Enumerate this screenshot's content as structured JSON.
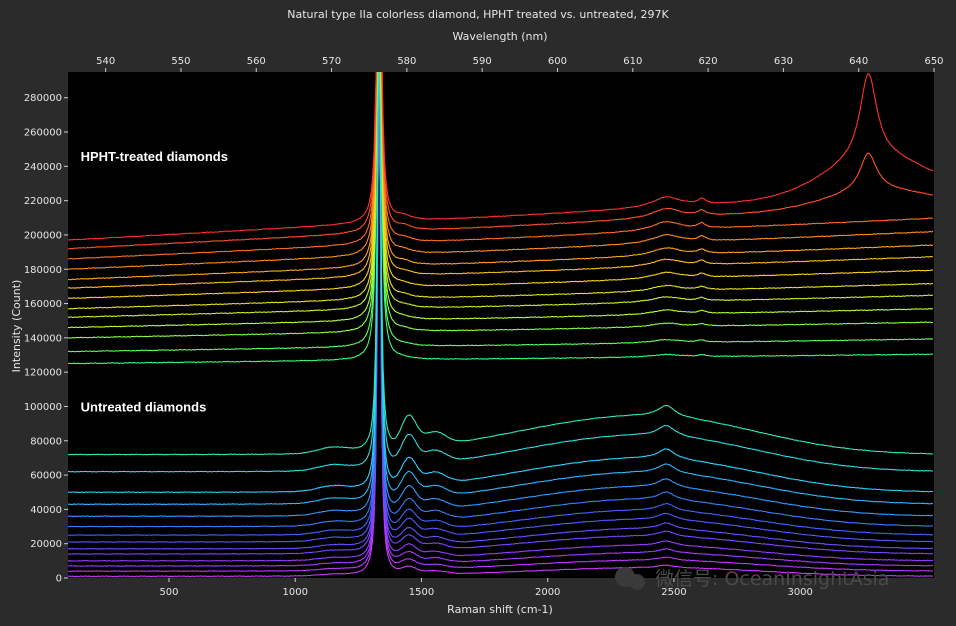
{
  "chart_data": {
    "type": "line",
    "title": "Natural type IIa colorless diamond, HPHT treated vs. untreated, 297K",
    "xlabel": "Raman shift (cm-1)",
    "x2label": "Wavelength (nm)",
    "ylabel": "Intensity (Count)",
    "xlim": [
      100,
      3530
    ],
    "x2lim": [
      535,
      650
    ],
    "ylim": [
      0,
      295000
    ],
    "xticks": [
      500,
      1000,
      1500,
      2000,
      2500,
      3000
    ],
    "x2ticks": [
      540,
      550,
      560,
      570,
      580,
      590,
      600,
      610,
      620,
      630,
      640,
      650
    ],
    "yticks": [
      0,
      20000,
      40000,
      60000,
      80000,
      100000,
      120000,
      140000,
      160000,
      180000,
      200000,
      220000,
      240000,
      260000,
      280000
    ],
    "grid": false,
    "background": "#000000",
    "diamond_peak_x": 1332,
    "annotations": [
      {
        "text": "HPHT-treated diamonds",
        "x": 150,
        "y": 243000
      },
      {
        "text": "Untreated diamonds",
        "x": 150,
        "y": 97000
      }
    ],
    "hpht_baselines": [
      125000,
      132000,
      140000,
      146000,
      152000,
      157000,
      163000,
      169000,
      174000,
      180000,
      186000,
      192000,
      197000
    ],
    "untreated_baselines": [
      1000,
      4000,
      7000,
      10000,
      14000,
      17000,
      21000,
      25000,
      30000,
      36000,
      43000,
      50000,
      62000,
      72000
    ],
    "colors": [
      "#ff3030",
      "#ff8c1a",
      "#ffd21a",
      "#b4ff32",
      "#32ff78",
      "#28d2ff",
      "#3c64ff",
      "#8c3cff",
      "#dc32ff"
    ]
  },
  "watermark": "微信号: OceanInsightAsia"
}
